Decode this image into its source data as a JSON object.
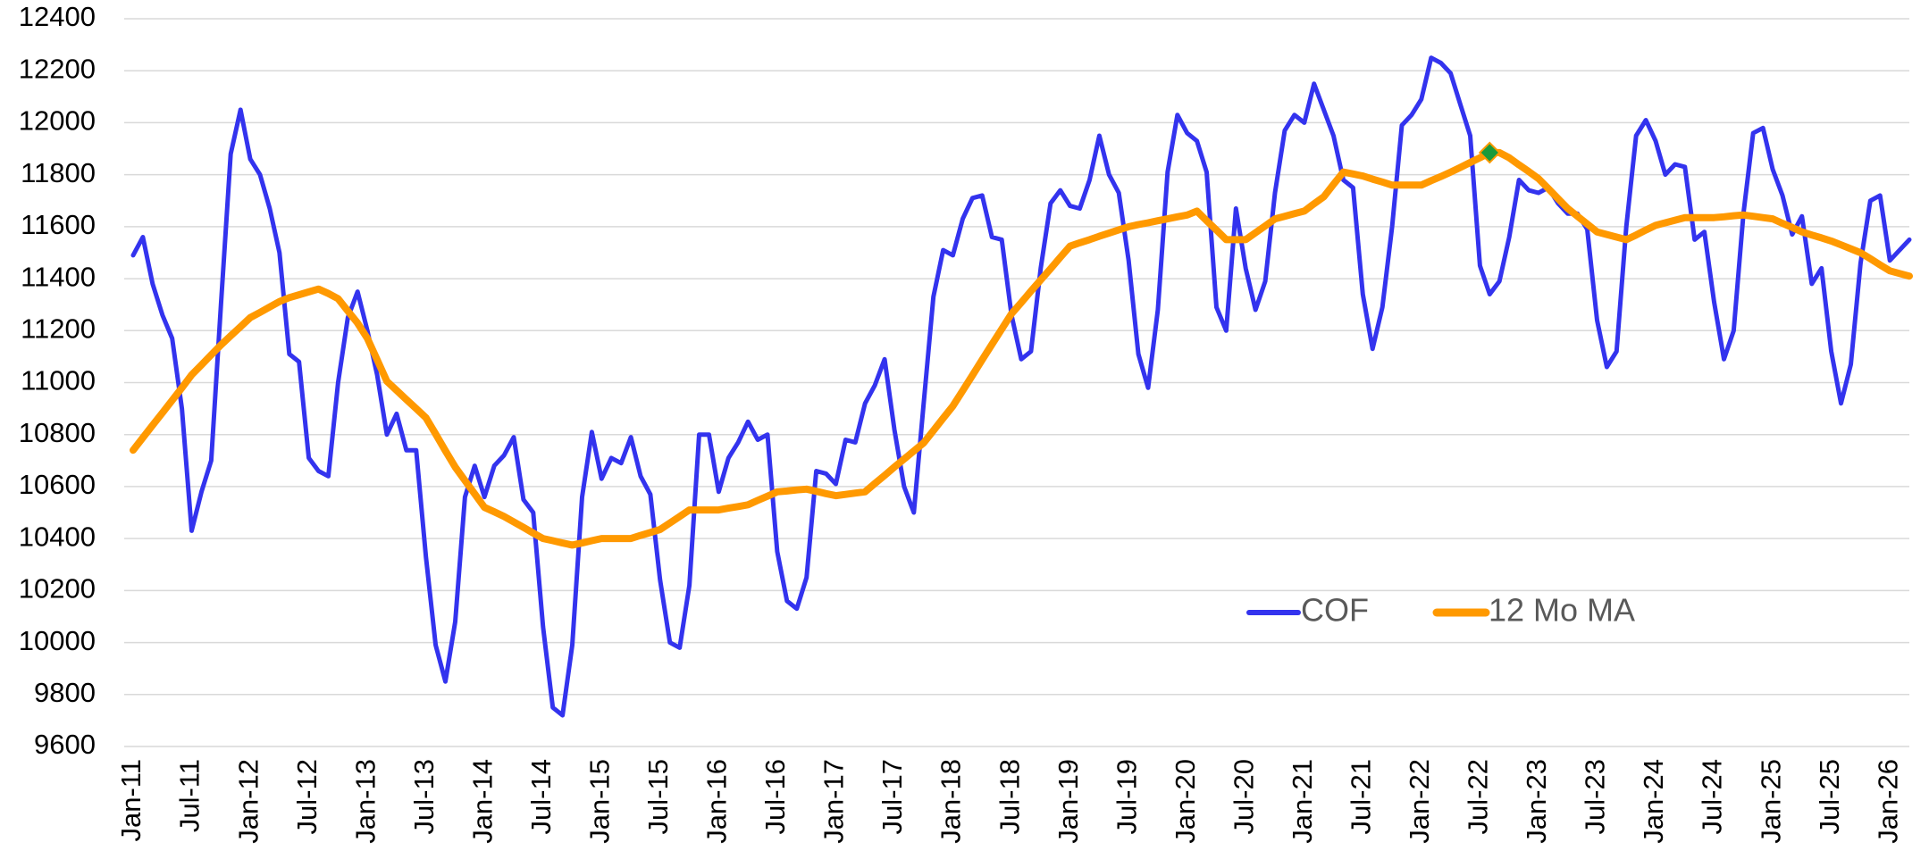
{
  "chart_data": {
    "type": "line",
    "categories": [
      "Jan-11",
      null,
      null,
      null,
      null,
      null,
      "Jul-11",
      null,
      null,
      null,
      null,
      null,
      "Jan-12",
      null,
      null,
      null,
      null,
      null,
      "Jul-12",
      null,
      null,
      null,
      null,
      null,
      "Jan-13",
      null,
      null,
      null,
      null,
      null,
      "Jul-13",
      null,
      null,
      null,
      null,
      null,
      "Jan-14",
      null,
      null,
      null,
      null,
      null,
      "Jul-14",
      null,
      null,
      null,
      null,
      null,
      "Jan-15",
      null,
      null,
      null,
      null,
      null,
      "Jul-15",
      null,
      null,
      null,
      null,
      null,
      "Jan-16",
      null,
      null,
      null,
      null,
      null,
      "Jul-16",
      null,
      null,
      null,
      null,
      null,
      "Jan-17",
      null,
      null,
      null,
      null,
      null,
      "Jul-17",
      null,
      null,
      null,
      null,
      null,
      "Jan-18",
      null,
      null,
      null,
      null,
      null,
      "Jul-18",
      null,
      null,
      null,
      null,
      null,
      "Jan-19",
      null,
      null,
      null,
      null,
      null,
      "Jul-19",
      null,
      null,
      null,
      null,
      null,
      "Jan-20",
      null,
      null,
      null,
      null,
      null,
      "Jul-20",
      null,
      null,
      null,
      null,
      null,
      "Jan-21",
      null,
      null,
      null,
      null,
      null,
      "Jul-21",
      null,
      null,
      null,
      null,
      null,
      "Jan-22",
      null,
      null,
      null,
      null,
      null,
      "Jul-22",
      null,
      null,
      null,
      null,
      null,
      "Jan-23",
      null,
      null,
      null,
      null,
      null,
      "Jul-23",
      null,
      null,
      null,
      null,
      null,
      "Jan-24",
      null,
      null,
      null,
      null,
      null,
      "Jul-24",
      null,
      null,
      null,
      null,
      null,
      "Jan-25",
      null,
      null,
      null,
      null,
      null,
      "Jul-25",
      null,
      null,
      null,
      null,
      null,
      "Jan-26",
      null,
      null
    ],
    "series": [
      {
        "name": "COF",
        "color": "#3333ee",
        "values": [
          11490,
          11560,
          11380,
          11260,
          11170,
          10900,
          10430,
          10580,
          10700,
          11300,
          11880,
          12050,
          11860,
          11800,
          11670,
          11500,
          11110,
          11080,
          10710,
          10660,
          10640,
          11000,
          11250,
          11350,
          11200,
          11030,
          10800,
          10880,
          10740,
          10740,
          10330,
          9990,
          9850,
          10080,
          10560,
          10680,
          10560,
          10680,
          10720,
          10790,
          10550,
          10500,
          10060,
          9750,
          9720,
          9990,
          10560,
          10810,
          10630,
          10710,
          10690,
          10790,
          10640,
          10570,
          10240,
          10000,
          9980,
          10220,
          10800,
          10800,
          10580,
          10710,
          10770,
          10850,
          10780,
          10800,
          10350,
          10160,
          10130,
          10250,
          10660,
          10650,
          10610,
          10780,
          10770,
          10920,
          10990,
          11090,
          10820,
          10600,
          10500,
          10920,
          11330,
          11510,
          11490,
          11630,
          11710,
          11720,
          11560,
          11550,
          11260,
          11090,
          11120,
          11440,
          11690,
          11740,
          11680,
          11670,
          11780,
          11950,
          11800,
          11730,
          11470,
          11110,
          10980,
          11280,
          11810,
          12030,
          11960,
          11930,
          11810,
          11290,
          11200,
          11670,
          11440,
          11280,
          11390,
          11730,
          11970,
          12030,
          12000,
          12150,
          12050,
          11950,
          11780,
          11750,
          11340,
          11130,
          11290,
          11600,
          11990,
          12030,
          12090,
          12250,
          12230,
          12190,
          12070,
          11950,
          11450,
          11340,
          11390,
          11560,
          11780,
          11740,
          11730,
          11750,
          11690,
          11650,
          11650,
          11590,
          11240,
          11060,
          11120,
          11600,
          11950,
          12010,
          11930,
          11800,
          11840,
          11830,
          11550,
          11580,
          11310,
          11090,
          11200,
          11650,
          11960,
          11980,
          11820,
          11720,
          11570,
          11640,
          11380,
          11440,
          11120,
          10920,
          11070,
          11460,
          11700,
          11720,
          11470,
          11510,
          11550
        ]
      },
      {
        "name": "12 Mo MA",
        "color": "#ff9900",
        "marker_index": 139,
        "marker_color": "#1a9a3c",
        "values": [
          10740,
          10788,
          10836,
          10884,
          10932,
          10980,
          11030,
          11068,
          11107,
          11145,
          11180,
          11215,
          11250,
          11270,
          11291,
          11312,
          11327,
          11338,
          11349,
          11360,
          11343,
          11323,
          11276,
          11229,
          11170,
          11088,
          11005,
          10970,
          10935,
          10900,
          10865,
          10802,
          10738,
          10675,
          10623,
          10572,
          10520,
          10503,
          10485,
          10464,
          10443,
          10421,
          10400,
          10392,
          10383,
          10375,
          10383,
          10392,
          10400,
          10400,
          10400,
          10400,
          10412,
          10423,
          10435,
          10460,
          10485,
          10510,
          10510,
          10510,
          10510,
          10517,
          10523,
          10530,
          10547,
          10563,
          10580,
          10583,
          10587,
          10590,
          10582,
          10573,
          10565,
          10570,
          10575,
          10580,
          10612,
          10643,
          10675,
          10706,
          10737,
          10768,
          10815,
          10863,
          10910,
          10969,
          11028,
          11088,
          11147,
          11206,
          11265,
          11308,
          11352,
          11395,
          11438,
          11482,
          11525,
          11538,
          11550,
          11563,
          11575,
          11588,
          11600,
          11608,
          11615,
          11623,
          11630,
          11638,
          11645,
          11660,
          11623,
          11587,
          11550,
          11550,
          11550,
          11577,
          11603,
          11630,
          11640,
          11650,
          11660,
          11688,
          11715,
          11763,
          11810,
          11803,
          11795,
          11783,
          11772,
          11760,
          11760,
          11760,
          11760,
          11777,
          11793,
          11810,
          11828,
          11847,
          11865,
          11885,
          11885,
          11865,
          11838,
          11812,
          11785,
          11747,
          11708,
          11670,
          11640,
          11610,
          11580,
          11570,
          11560,
          11550,
          11568,
          11587,
          11605,
          11615,
          11625,
          11635,
          11635,
          11635,
          11635,
          11638,
          11642,
          11645,
          11640,
          11635,
          11630,
          11613,
          11597,
          11580,
          11568,
          11557,
          11545,
          11530,
          11515,
          11500,
          11477,
          11453,
          11430,
          11420,
          11410
        ]
      }
    ],
    "ylim": [
      9600,
      12400
    ],
    "yticks": [
      9600,
      9800,
      10000,
      10200,
      10400,
      10600,
      10800,
      11000,
      11200,
      11400,
      11600,
      11800,
      12000,
      12200,
      12400
    ],
    "grid": true,
    "legend": "lower right"
  }
}
